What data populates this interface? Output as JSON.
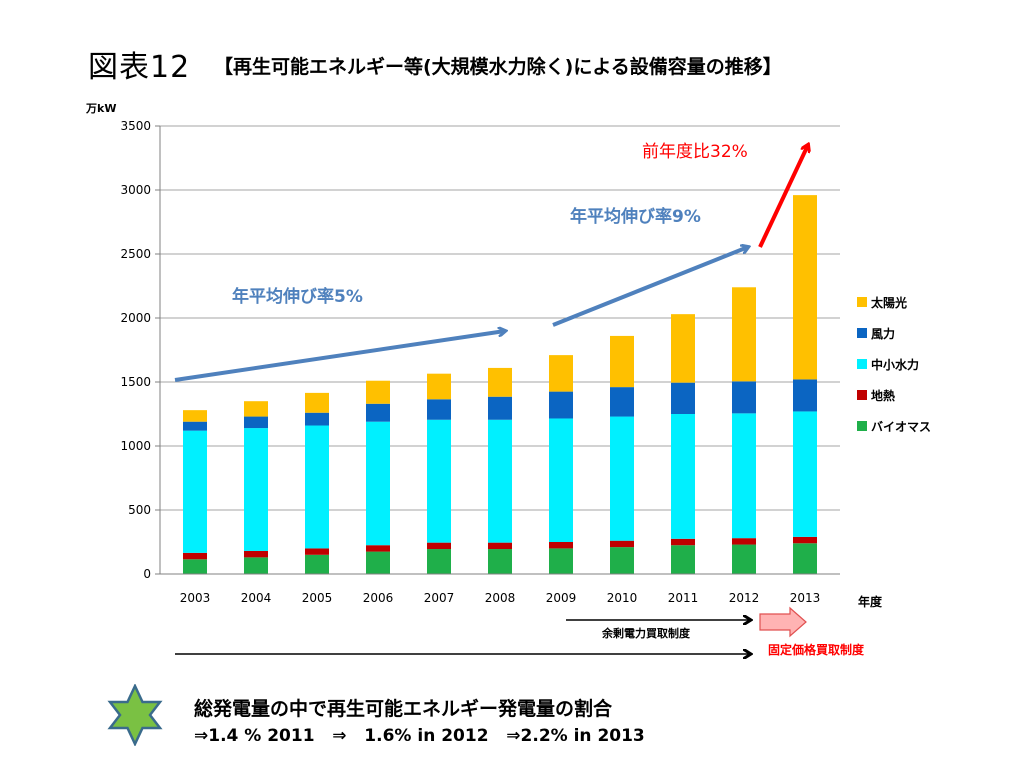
{
  "figure_number": "図表12",
  "figure_title": "【再生可能エネルギー等(大規模水力除く)による設備容量の推移】",
  "chart_data": {
    "type": "bar",
    "stacked": true,
    "unit_label": "万kW",
    "xlabel": "年度",
    "categories": [
      "2003",
      "2004",
      "2005",
      "2006",
      "2007",
      "2008",
      "2009",
      "2010",
      "2011",
      "2012",
      "2013"
    ],
    "ylim": [
      0,
      3500
    ],
    "yticks": [
      0,
      500,
      1000,
      1500,
      2000,
      2500,
      3000,
      3500
    ],
    "grid": true,
    "legend_position": "right",
    "series": [
      {
        "name": "バイオマス",
        "color": "#1FAF4A",
        "values": [
          115,
          130,
          150,
          175,
          195,
          195,
          200,
          210,
          225,
          230,
          240
        ]
      },
      {
        "name": "地熱",
        "color": "#C00000",
        "values": [
          50,
          50,
          50,
          50,
          50,
          50,
          50,
          50,
          50,
          50,
          50
        ]
      },
      {
        "name": "中小水力",
        "color": "#00F0FF",
        "values": [
          955,
          960,
          960,
          965,
          960,
          960,
          965,
          970,
          975,
          975,
          980
        ]
      },
      {
        "name": "風力",
        "color": "#0B65C2",
        "values": [
          70,
          90,
          100,
          140,
          160,
          180,
          210,
          230,
          245,
          250,
          250
        ]
      },
      {
        "name": "太陽光",
        "color": "#FFC000",
        "values": [
          90,
          120,
          155,
          180,
          200,
          225,
          285,
          400,
          535,
          735,
          1440
        ]
      }
    ],
    "annotations": [
      {
        "text": "年平均伸び率5%",
        "color": "#4F81BD"
      },
      {
        "text": "年平均伸び率9%",
        "color": "#4F81BD"
      },
      {
        "text": "前年度比32%",
        "color": "#FF0000"
      },
      {
        "text": "余剰電力買取制度",
        "color": "#000000"
      },
      {
        "text": "固定価格買取制度",
        "color": "#FF0000"
      }
    ]
  },
  "summary": {
    "line1": "総発電量の中で再生可能エネルギー発電量の割合",
    "line2": "⇒1.4 % 2011   ⇒   1.6% in 2012   ⇒2.2% in 2013"
  },
  "colors": {
    "star_fill": "#7AC143",
    "star_stroke": "#3A6B8C",
    "arrow_blue": "#4F81BD",
    "arrow_red": "#FF0000",
    "axis": "#808080"
  },
  "icons": {
    "star": "six-point-star-icon"
  }
}
